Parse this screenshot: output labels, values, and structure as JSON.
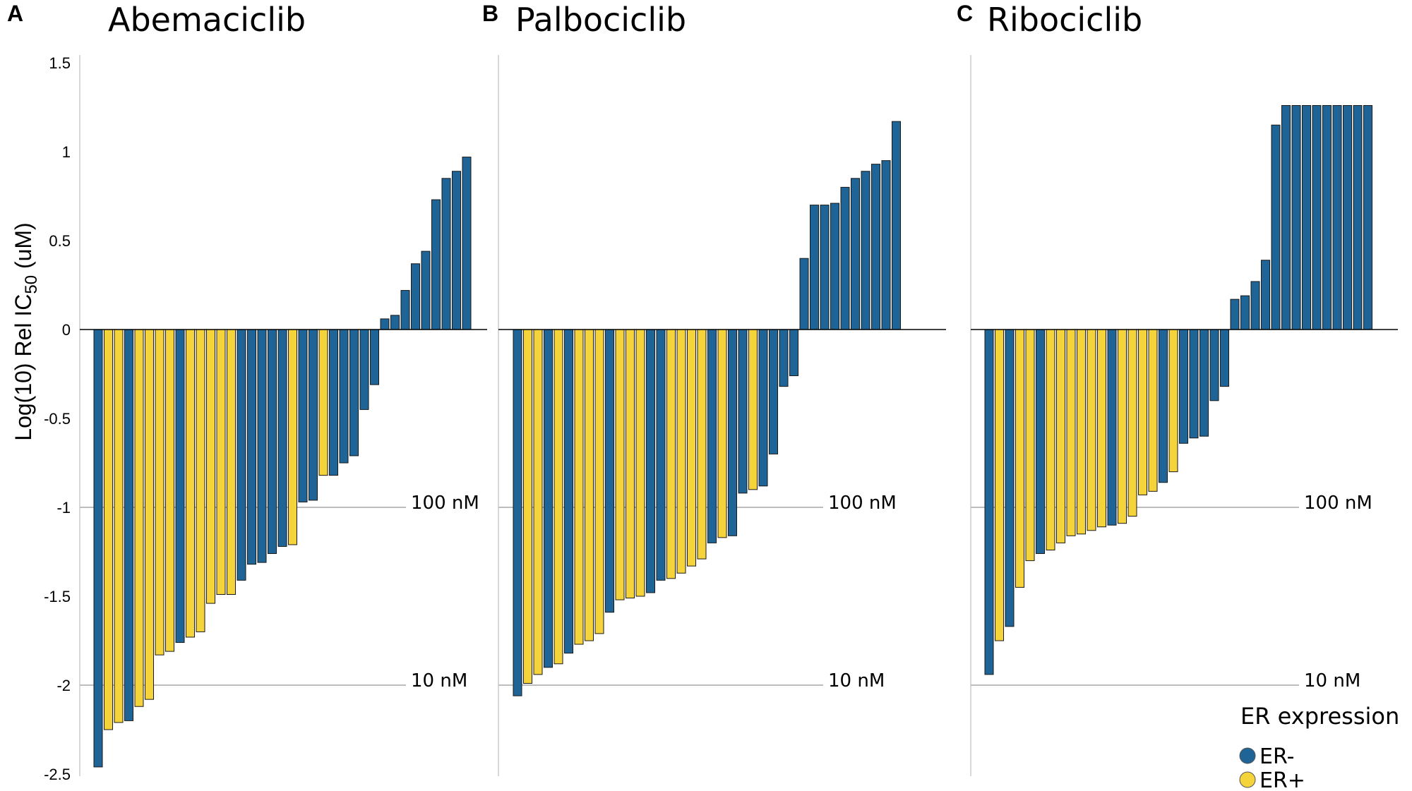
{
  "colors": {
    "er_neg": "#1f6496",
    "er_pos": "#f5d33b",
    "stroke": "#1a1a1a",
    "axis": "#cccccc",
    "refline": "#bdbdbd"
  },
  "y_axis": {
    "label": "Log(10) Rel IC",
    "label_sub": "50",
    "label_unit": " (uM)",
    "ticks": [
      {
        "value": 1.5,
        "label": "1.5"
      },
      {
        "value": 1,
        "label": "1"
      },
      {
        "value": 0.5,
        "label": "0.5"
      },
      {
        "value": 0,
        "label": "0"
      },
      {
        "value": -0.5,
        "label": "-0.5"
      },
      {
        "value": -1,
        "label": "-1"
      },
      {
        "value": -1.5,
        "label": "-1.5"
      },
      {
        "value": -2,
        "label": "-2"
      },
      {
        "value": -2.5,
        "label": "-2.5"
      }
    ]
  },
  "legend": {
    "title": "ER expression",
    "items": [
      {
        "key": "neg",
        "label": "ER-",
        "color": "#1f6496"
      },
      {
        "key": "pos",
        "label": "ER+",
        "color": "#f5d33b"
      }
    ]
  },
  "reference_lines": [
    {
      "value": -1,
      "label": "100 nM"
    },
    {
      "value": -2,
      "label": "10 nM"
    }
  ],
  "chart_data": [
    {
      "type": "bar",
      "panel": "A",
      "title": "Abemaciclib",
      "ylim": [
        -2.5,
        1.5
      ],
      "values": [
        -2.46,
        -2.25,
        -2.21,
        -2.2,
        -2.12,
        -2.08,
        -1.83,
        -1.81,
        -1.76,
        -1.73,
        -1.7,
        -1.54,
        -1.49,
        -1.49,
        -1.41,
        -1.32,
        -1.31,
        -1.26,
        -1.22,
        -1.21,
        -0.97,
        -0.96,
        -0.82,
        -0.82,
        -0.75,
        -0.71,
        -0.45,
        -0.31,
        0.06,
        0.08,
        0.22,
        0.37,
        0.44,
        0.73,
        0.85,
        0.89,
        0.97
      ],
      "er": [
        "neg",
        "pos",
        "pos",
        "neg",
        "pos",
        "pos",
        "pos",
        "pos",
        "neg",
        "pos",
        "pos",
        "pos",
        "pos",
        "pos",
        "neg",
        "neg",
        "neg",
        "neg",
        "neg",
        "pos",
        "neg",
        "neg",
        "pos",
        "neg",
        "neg",
        "neg",
        "neg",
        "neg",
        "neg",
        "neg",
        "neg",
        "neg",
        "neg",
        "neg",
        "neg",
        "neg",
        "neg"
      ]
    },
    {
      "type": "bar",
      "panel": "B",
      "title": "Palbociclib",
      "ylim": [
        -2.5,
        1.5
      ],
      "values": [
        -2.06,
        -1.99,
        -1.94,
        -1.9,
        -1.88,
        -1.82,
        -1.77,
        -1.75,
        -1.71,
        -1.59,
        -1.52,
        -1.51,
        -1.5,
        -1.48,
        -1.41,
        -1.4,
        -1.37,
        -1.33,
        -1.29,
        -1.2,
        -1.17,
        -1.16,
        -0.92,
        -0.9,
        -0.88,
        -0.7,
        -0.32,
        -0.26,
        0.4,
        0.7,
        0.7,
        0.71,
        0.8,
        0.85,
        0.89,
        0.93,
        0.95,
        1.17
      ],
      "er": [
        "neg",
        "pos",
        "pos",
        "neg",
        "pos",
        "neg",
        "pos",
        "pos",
        "pos",
        "neg",
        "pos",
        "pos",
        "pos",
        "neg",
        "neg",
        "pos",
        "pos",
        "pos",
        "pos",
        "neg",
        "pos",
        "neg",
        "neg",
        "pos",
        "neg",
        "neg",
        "neg",
        "neg",
        "neg",
        "neg",
        "neg",
        "neg",
        "neg",
        "neg",
        "neg",
        "neg",
        "neg",
        "neg"
      ]
    },
    {
      "type": "bar",
      "panel": "C",
      "title": "Ribociclib",
      "ylim": [
        -2.5,
        1.5
      ],
      "values": [
        -1.94,
        -1.75,
        -1.67,
        -1.45,
        -1.3,
        -1.26,
        -1.24,
        -1.2,
        -1.16,
        -1.15,
        -1.13,
        -1.11,
        -1.1,
        -1.09,
        -1.05,
        -0.93,
        -0.91,
        -0.86,
        -0.8,
        -0.64,
        -0.61,
        -0.6,
        -0.4,
        -0.32,
        0.17,
        0.19,
        0.27,
        0.39,
        1.15,
        1.26,
        1.26,
        1.26,
        1.26,
        1.26,
        1.26,
        1.26,
        1.26,
        1.26
      ],
      "er": [
        "neg",
        "pos",
        "neg",
        "pos",
        "pos",
        "neg",
        "pos",
        "pos",
        "pos",
        "pos",
        "pos",
        "pos",
        "neg",
        "pos",
        "pos",
        "pos",
        "pos",
        "neg",
        "pos",
        "neg",
        "neg",
        "neg",
        "neg",
        "neg",
        "neg",
        "neg",
        "neg",
        "neg",
        "neg",
        "neg",
        "neg",
        "neg",
        "neg",
        "neg",
        "neg",
        "neg",
        "neg",
        "neg"
      ]
    }
  ]
}
